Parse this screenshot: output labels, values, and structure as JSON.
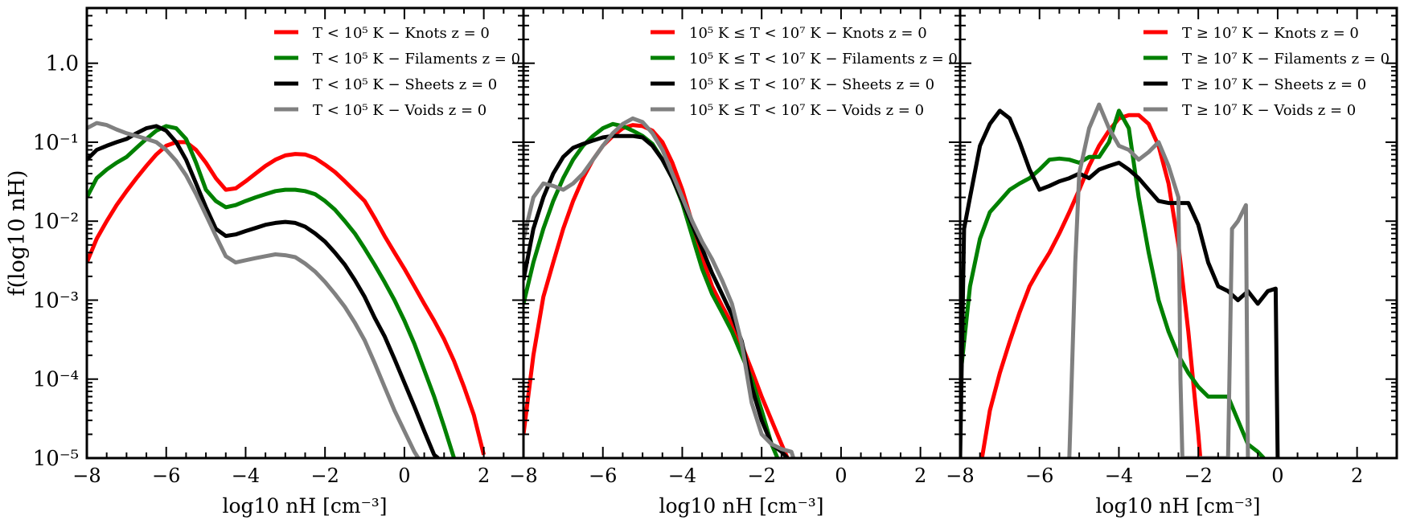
{
  "colors": {
    "knots": "#ff0000",
    "filaments": "#008000",
    "sheets": "#000000",
    "voids": "#808080"
  },
  "chart_data": [
    {
      "type": "line",
      "xlabel": "log10 nH [cm⁻³]",
      "ylabel": "f(log10 nH)",
      "xlim": [
        -8,
        3
      ],
      "ylim": [
        1e-05,
        5
      ],
      "yscale": "log",
      "x_ticks": [
        -8,
        -6,
        -4,
        -2,
        0,
        2
      ],
      "x_tick_labels": [
        "−8",
        "−6",
        "−4",
        "−2",
        "0",
        "2"
      ],
      "y_ticks": [
        1e-05,
        0.0001,
        0.001,
        0.01,
        0.1,
        1
      ],
      "y_tick_labels": [
        "10⁻⁵",
        "10⁻⁴",
        "10⁻³",
        "10⁻²",
        "10⁻¹",
        "1.0"
      ],
      "legend_position": "top-right",
      "series": [
        {
          "name": "T < 10⁵ K − Knots z = 0",
          "color": "#ff0000",
          "x": [
            -8,
            -7.75,
            -7.5,
            -7.25,
            -7,
            -6.75,
            -6.5,
            -6.25,
            -6,
            -5.75,
            -5.5,
            -5.25,
            -5,
            -4.75,
            -4.5,
            -4.25,
            -4,
            -3.75,
            -3.5,
            -3.25,
            -3,
            -2.75,
            -2.5,
            -2.25,
            -2,
            -1.75,
            -1.5,
            -1.25,
            -1,
            -0.75,
            -0.5,
            -0.25,
            0,
            0.25,
            0.5,
            0.75,
            1,
            1.25,
            1.5,
            1.75,
            2
          ],
          "y": [
            0.003,
            0.006,
            0.01,
            0.016,
            0.024,
            0.035,
            0.05,
            0.07,
            0.09,
            0.1,
            0.1,
            0.08,
            0.055,
            0.035,
            0.025,
            0.026,
            0.032,
            0.04,
            0.05,
            0.06,
            0.068,
            0.071,
            0.07,
            0.063,
            0.052,
            0.042,
            0.032,
            0.024,
            0.018,
            0.011,
            0.0065,
            0.004,
            0.0025,
            0.0015,
            0.0009,
            0.00055,
            0.00032,
            0.00017,
            8e-05,
            3.5e-05,
            1.1e-05
          ]
        },
        {
          "name": "T < 10⁵ K − Filaments z = 0",
          "color": "#008000",
          "x": [
            -8,
            -7.75,
            -7.5,
            -7.25,
            -7,
            -6.75,
            -6.5,
            -6.25,
            -6,
            -5.75,
            -5.5,
            -5.25,
            -5,
            -4.75,
            -4.5,
            -4.25,
            -4,
            -3.75,
            -3.5,
            -3.25,
            -3,
            -2.75,
            -2.5,
            -2.25,
            -2,
            -1.75,
            -1.5,
            -1.25,
            -1,
            -0.75,
            -0.5,
            -0.25,
            0,
            0.25,
            0.5,
            0.75,
            1,
            1.25
          ],
          "y": [
            0.02,
            0.035,
            0.045,
            0.055,
            0.065,
            0.085,
            0.11,
            0.14,
            0.16,
            0.15,
            0.11,
            0.055,
            0.025,
            0.018,
            0.015,
            0.016,
            0.018,
            0.02,
            0.022,
            0.024,
            0.025,
            0.025,
            0.024,
            0.022,
            0.018,
            0.014,
            0.01,
            0.007,
            0.0045,
            0.0028,
            0.0017,
            0.001,
            0.00055,
            0.00028,
            0.00013,
            6e-05,
            2.5e-05,
            1e-05
          ]
        },
        {
          "name": "T < 10⁵ K − Sheets z = 0",
          "color": "#000000",
          "x": [
            -8,
            -7.75,
            -7.5,
            -7.25,
            -7,
            -6.75,
            -6.5,
            -6.25,
            -6,
            -5.75,
            -5.5,
            -5.25,
            -5,
            -4.75,
            -4.5,
            -4.25,
            -4,
            -3.75,
            -3.5,
            -3.25,
            -3,
            -2.75,
            -2.5,
            -2.25,
            -2,
            -1.75,
            -1.5,
            -1.25,
            -1,
            -0.75,
            -0.5,
            -0.25,
            0,
            0.25,
            0.5,
            0.75,
            0.85
          ],
          "y": [
            0.06,
            0.08,
            0.09,
            0.1,
            0.11,
            0.13,
            0.15,
            0.16,
            0.14,
            0.1,
            0.06,
            0.03,
            0.015,
            0.008,
            0.0065,
            0.0068,
            0.0075,
            0.0082,
            0.009,
            0.0095,
            0.0098,
            0.0095,
            0.0085,
            0.007,
            0.0055,
            0.004,
            0.0028,
            0.0018,
            0.0011,
            0.0006,
            0.00035,
            0.00018,
            9e-05,
            4.5e-05,
            2.2e-05,
            1.1e-05,
            1e-05
          ]
        },
        {
          "name": "T < 10⁵ K − Voids z = 0",
          "color": "#808080",
          "x": [
            -8,
            -7.75,
            -7.5,
            -7.25,
            -7,
            -6.75,
            -6.5,
            -6.25,
            -6,
            -5.75,
            -5.5,
            -5.25,
            -5,
            -4.75,
            -4.5,
            -4.25,
            -4,
            -3.75,
            -3.5,
            -3.25,
            -3,
            -2.75,
            -2.5,
            -2.25,
            -2,
            -1.75,
            -1.5,
            -1.25,
            -1,
            -0.75,
            -0.5,
            -0.25,
            0,
            0.25,
            0.35
          ],
          "y": [
            0.15,
            0.175,
            0.165,
            0.145,
            0.13,
            0.12,
            0.11,
            0.1,
            0.08,
            0.058,
            0.038,
            0.022,
            0.012,
            0.0065,
            0.0036,
            0.003,
            0.0032,
            0.0034,
            0.0036,
            0.0038,
            0.0037,
            0.0035,
            0.0029,
            0.0023,
            0.0017,
            0.0012,
            0.00082,
            0.00052,
            0.00031,
            0.00016,
            8e-05,
            4e-05,
            2.2e-05,
            1.2e-05,
            1e-05
          ]
        }
      ]
    },
    {
      "type": "line",
      "xlabel": "log10 nH [cm⁻³]",
      "xlim": [
        -8,
        3
      ],
      "ylim": [
        1e-05,
        5
      ],
      "yscale": "log",
      "x_ticks": [
        -8,
        -6,
        -4,
        -2,
        0,
        2
      ],
      "x_tick_labels": [
        "−8",
        "−6",
        "−4",
        "−2",
        "0",
        "2"
      ],
      "legend_position": "top-right",
      "series": [
        {
          "name": "10⁵ K ≤ T < 10⁷ K − Knots z = 0",
          "color": "#ff0000",
          "x": [
            -8,
            -7.75,
            -7.5,
            -7.25,
            -7,
            -6.75,
            -6.5,
            -6.25,
            -6,
            -5.75,
            -5.5,
            -5.25,
            -5,
            -4.75,
            -4.5,
            -4.25,
            -4,
            -3.75,
            -3.5,
            -3.25,
            -3,
            -2.75,
            -2.5,
            -2.25,
            -2,
            -1.75,
            -1.5,
            -1.35
          ],
          "y": [
            2e-05,
            0.0002,
            0.0011,
            0.003,
            0.008,
            0.018,
            0.035,
            0.06,
            0.09,
            0.12,
            0.15,
            0.165,
            0.16,
            0.14,
            0.1,
            0.055,
            0.025,
            0.0095,
            0.0035,
            0.0015,
            0.00085,
            0.0005,
            0.00027,
            0.00013,
            6e-05,
            3e-05,
            1.5e-05,
            1e-05
          ]
        },
        {
          "name": "10⁵ K ≤ T < 10⁷ K − Filaments z = 0",
          "color": "#008000",
          "x": [
            -8,
            -7.75,
            -7.5,
            -7.25,
            -7,
            -6.75,
            -6.5,
            -6.25,
            -6,
            -5.75,
            -5.5,
            -5.25,
            -5,
            -4.75,
            -4.5,
            -4.25,
            -4,
            -3.75,
            -3.5,
            -3.25,
            -3,
            -2.75,
            -2.5,
            -2.25,
            -2,
            -1.75,
            -1.6
          ],
          "y": [
            0.0009,
            0.003,
            0.008,
            0.018,
            0.035,
            0.06,
            0.09,
            0.12,
            0.15,
            0.17,
            0.16,
            0.14,
            0.12,
            0.095,
            0.06,
            0.035,
            0.017,
            0.0065,
            0.0025,
            0.0012,
            0.0007,
            0.0004,
            0.0002,
            0.0001,
            4e-05,
            1.5e-05,
            1e-05
          ]
        },
        {
          "name": "10⁵ K ≤ T < 10⁷ K − Sheets z = 0",
          "color": "#000000",
          "x": [
            -8,
            -7.75,
            -7.5,
            -7.25,
            -7,
            -6.75,
            -6.5,
            -6.25,
            -6,
            -5.75,
            -5.5,
            -5.25,
            -5,
            -4.75,
            -4.5,
            -4.25,
            -4,
            -3.75,
            -3.5,
            -3.25,
            -3,
            -2.75,
            -2.5,
            -2.25,
            -2,
            -1.75,
            -1.5,
            -1.35
          ],
          "y": [
            0.0018,
            0.008,
            0.02,
            0.04,
            0.065,
            0.085,
            0.095,
            0.105,
            0.115,
            0.12,
            0.12,
            0.12,
            0.115,
            0.09,
            0.06,
            0.035,
            0.018,
            0.009,
            0.0045,
            0.0022,
            0.0012,
            0.00065,
            0.0003,
            8e-05,
            3e-05,
            1.5e-05,
            1.2e-05,
            1e-05
          ]
        },
        {
          "name": "10⁵ K ≤ T < 10⁷ K − Voids z = 0",
          "color": "#808080",
          "x": [
            -8,
            -7.75,
            -7.5,
            -7.25,
            -7,
            -6.75,
            -6.5,
            -6.25,
            -6,
            -5.75,
            -5.5,
            -5.25,
            -5,
            -4.75,
            -4.5,
            -4.25,
            -4,
            -3.75,
            -3.5,
            -3.25,
            -3,
            -2.75,
            -2.5,
            -2.25,
            -2,
            -1.75,
            -1.5,
            -1.25,
            -1.2
          ],
          "y": [
            0.006,
            0.02,
            0.03,
            0.028,
            0.025,
            0.03,
            0.04,
            0.06,
            0.09,
            0.13,
            0.17,
            0.2,
            0.18,
            0.13,
            0.08,
            0.04,
            0.02,
            0.01,
            0.0055,
            0.0033,
            0.0018,
            0.0009,
            0.00028,
            5e-05,
            2e-05,
            1.5e-05,
            1.3e-05,
            1.2e-05,
            1e-05
          ]
        }
      ]
    },
    {
      "type": "line",
      "xlabel": "log10 nH [cm⁻³]",
      "xlim": [
        -8,
        3
      ],
      "ylim": [
        1e-05,
        5
      ],
      "yscale": "log",
      "x_ticks": [
        -8,
        -6,
        -4,
        -2,
        0,
        2
      ],
      "x_tick_labels": [
        "−8",
        "−6",
        "−4",
        "−2",
        "0",
        "2"
      ],
      "legend_position": "top-right",
      "series": [
        {
          "name": "T ≥ 10⁷ K − Knots z = 0",
          "color": "#ff0000",
          "x": [
            -7.45,
            -7.25,
            -7,
            -6.75,
            -6.5,
            -6.25,
            -6,
            -5.75,
            -5.5,
            -5.25,
            -5,
            -4.75,
            -4.5,
            -4.25,
            -4,
            -3.75,
            -3.5,
            -3.25,
            -3,
            -2.75,
            -2.5,
            -2.25,
            -2,
            -1.95
          ],
          "y": [
            1e-05,
            4e-05,
            0.00012,
            0.0003,
            0.0007,
            0.0015,
            0.0025,
            0.004,
            0.007,
            0.013,
            0.025,
            0.05,
            0.09,
            0.14,
            0.2,
            0.22,
            0.22,
            0.17,
            0.09,
            0.03,
            0.005,
            0.0004,
            2e-05,
            1e-05
          ]
        },
        {
          "name": "T ≥ 10⁷ K − Filaments z = 0",
          "color": "#008000",
          "x": [
            -8,
            -7.75,
            -7.5,
            -7.25,
            -7,
            -6.75,
            -6.5,
            -6.25,
            -6,
            -5.75,
            -5.5,
            -5.25,
            -5,
            -4.75,
            -4.5,
            -4.25,
            -4,
            -3.75,
            -3.5,
            -3.25,
            -3,
            -2.75,
            -2.5,
            -2.25,
            -2,
            -1.75,
            -1.5,
            -1.25,
            -1,
            -0.75,
            -0.5,
            -0.35
          ],
          "y": [
            0.0001,
            0.0015,
            0.006,
            0.013,
            0.018,
            0.025,
            0.03,
            0.035,
            0.045,
            0.06,
            0.062,
            0.06,
            0.055,
            0.065,
            0.065,
            0.1,
            0.25,
            0.15,
            0.02,
            0.004,
            0.001,
            0.0004,
            0.0002,
            0.00012,
            8e-05,
            6e-05,
            6e-05,
            6e-05,
            3e-05,
            1.5e-05,
            1.2e-05,
            1e-05
          ]
        },
        {
          "name": "T ≥ 10⁷ K − Sheets z = 0",
          "color": "#000000",
          "x": [
            -8,
            -7.9,
            -7.75,
            -7.5,
            -7.25,
            -7,
            -6.75,
            -6.5,
            -6.25,
            -6,
            -5.75,
            -5.5,
            -5.25,
            -5,
            -4.75,
            -4.5,
            -4.25,
            -4,
            -3.75,
            -3.5,
            -3.25,
            -3,
            -2.75,
            -2.5,
            -2.25,
            -2,
            -1.75,
            -1.5,
            -1.25,
            -1,
            -0.75,
            -0.5,
            -0.25,
            -0.05,
            0
          ],
          "y": [
            1e-05,
            0.008,
            0.02,
            0.09,
            0.17,
            0.25,
            0.2,
            0.1,
            0.045,
            0.025,
            0.028,
            0.032,
            0.035,
            0.04,
            0.035,
            0.045,
            0.05,
            0.055,
            0.045,
            0.035,
            0.025,
            0.018,
            0.017,
            0.017,
            0.017,
            0.009,
            0.003,
            0.0015,
            0.0013,
            0.001,
            0.0013,
            0.0009,
            0.0013,
            0.0014,
            1e-05
          ]
        },
        {
          "name": "T ≥ 10⁷ K − Voids z = 0",
          "color": "#808080",
          "x": [
            -5.25,
            -5.1,
            -5,
            -4.75,
            -4.5,
            -4.25,
            -4,
            -3.75,
            -3.5,
            -3.25,
            -3,
            -2.75,
            -2.5,
            -2.45,
            -2.4,
            -2.35,
            -2.3,
            -1.25,
            -1.15,
            -1,
            -0.8,
            -0.75
          ],
          "y": [
            1e-05,
            0.003,
            0.04,
            0.15,
            0.3,
            0.15,
            0.09,
            0.08,
            0.06,
            0.075,
            0.1,
            0.05,
            0.02,
            0.0001,
            1e-05,
            1e-05,
            1e-05,
            1e-05,
            0.008,
            0.01,
            0.016,
            1e-05
          ]
        }
      ]
    }
  ]
}
